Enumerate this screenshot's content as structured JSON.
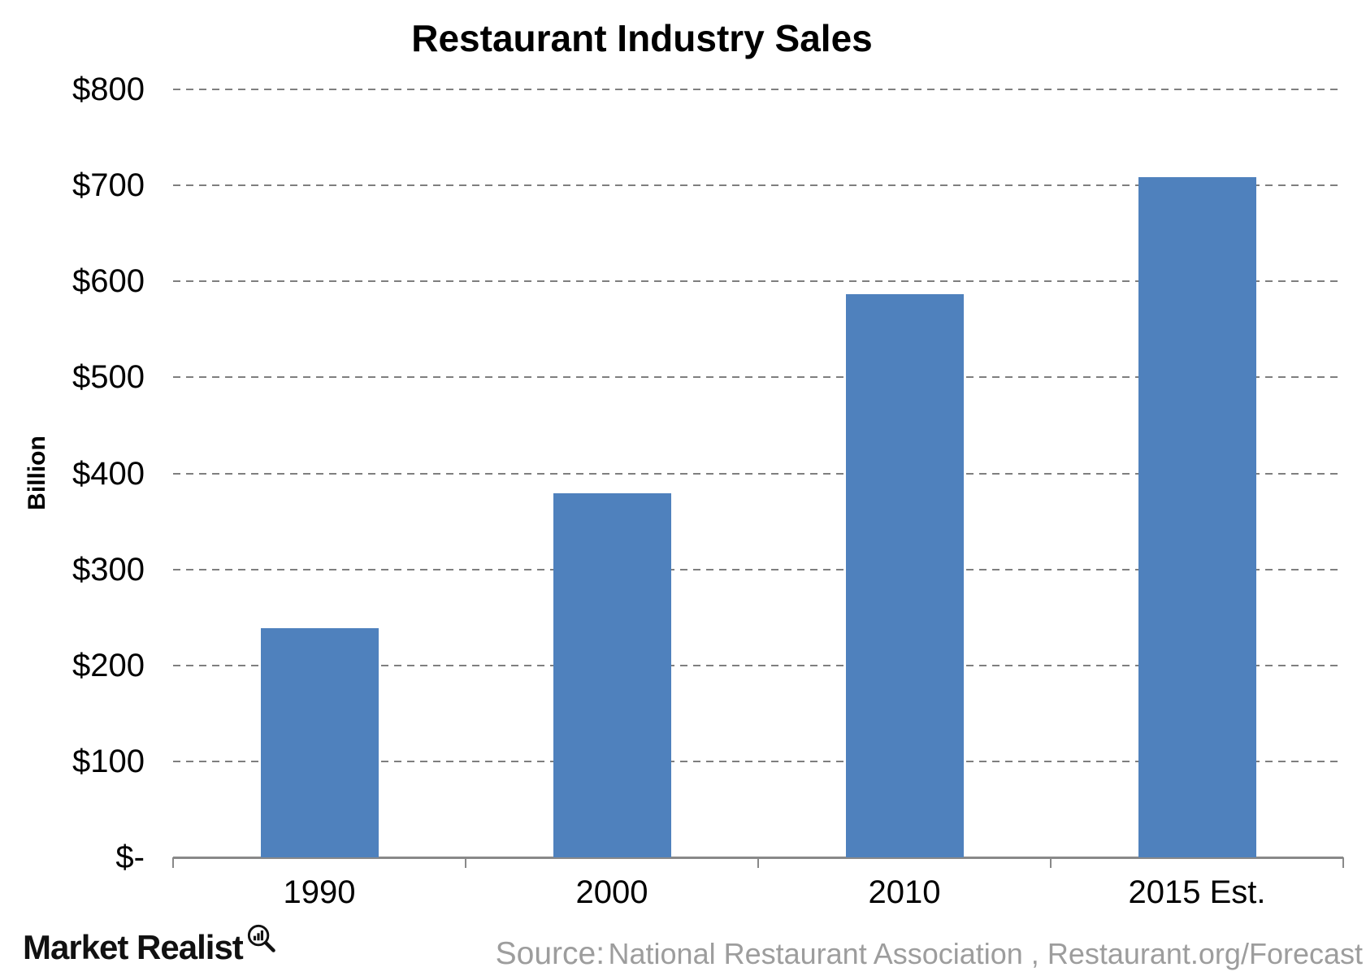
{
  "chart_data": {
    "type": "bar",
    "title": "Restaurant Industry Sales",
    "xlabel": "",
    "ylabel": "Billion",
    "categories": [
      "1990",
      "2000",
      "2010",
      "2015 Est."
    ],
    "values": [
      239,
      379,
      587,
      709
    ],
    "ylim": [
      0,
      800
    ],
    "ytick_step": 100,
    "ytick_labels": [
      "$-",
      "$100",
      "$200",
      "$300",
      "$400",
      "$500",
      "$600",
      "$700",
      "$800"
    ],
    "grid": "horizontal-dashed",
    "legend": "none",
    "bar_color": "#4F81BD",
    "axis_color": "#898989",
    "grid_color": "#7f7f7f"
  },
  "footer": {
    "logo_text": "Market Realist",
    "logo_icon": "magnifier-bar-chart-icon",
    "source_prefix": "Source:",
    "source_text": "National Restaurant Association , Restaurant.org/Forecast"
  }
}
